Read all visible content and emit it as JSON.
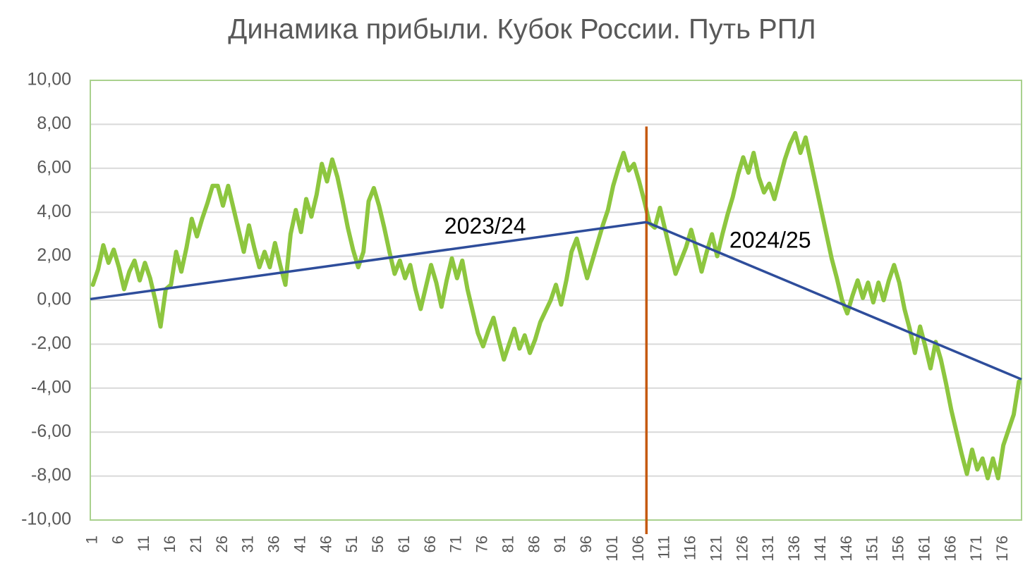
{
  "chart_data": {
    "type": "line",
    "title": "Динамика прибыли. Кубок России. Путь РПЛ",
    "categories": [
      "1",
      null,
      null,
      null,
      null,
      "6",
      null,
      null,
      null,
      null,
      "11",
      null,
      null,
      null,
      null,
      "16",
      null,
      null,
      null,
      null,
      "21",
      null,
      null,
      null,
      null,
      "26",
      null,
      null,
      null,
      null,
      "31",
      null,
      null,
      null,
      null,
      "36",
      null,
      null,
      null,
      null,
      "41",
      null,
      null,
      null,
      null,
      "46",
      null,
      null,
      null,
      null,
      "51",
      null,
      null,
      null,
      null,
      "56",
      null,
      null,
      null,
      null,
      "61",
      null,
      null,
      null,
      null,
      "66",
      null,
      null,
      null,
      null,
      "71",
      null,
      null,
      null,
      null,
      "76",
      null,
      null,
      null,
      null,
      "81",
      null,
      null,
      null,
      null,
      "86",
      null,
      null,
      null,
      null,
      "91",
      null,
      null,
      null,
      null,
      "96",
      null,
      null,
      null,
      null,
      "101",
      null,
      null,
      null,
      null,
      "106",
      null,
      null,
      null,
      null,
      "111",
      null,
      null,
      null,
      null,
      "116",
      null,
      null,
      null,
      null,
      "121",
      null,
      null,
      null,
      null,
      "126",
      null,
      null,
      null,
      null,
      "131",
      null,
      null,
      null,
      null,
      "136",
      null,
      null,
      null,
      null,
      "141",
      null,
      null,
      null,
      null,
      "146",
      null,
      null,
      null,
      null,
      "151",
      null,
      null,
      null,
      null,
      "156",
      null,
      null,
      null,
      null,
      "161",
      null,
      null,
      null,
      null,
      "166",
      null,
      null,
      null,
      null,
      "171",
      null,
      null,
      null,
      null,
      "176",
      null,
      null,
      null
    ],
    "values": [
      0.7,
      1.4,
      2.5,
      1.7,
      2.3,
      1.5,
      0.5,
      1.3,
      1.8,
      0.9,
      1.7,
      1.0,
      0,
      -1.2,
      0.5,
      0.7,
      2.2,
      1.3,
      2.4,
      3.7,
      2.9,
      3.7,
      4.4,
      5.2,
      5.2,
      4.3,
      5.2,
      4.2,
      3.2,
      2.2,
      3.4,
      2.4,
      1.5,
      2.2,
      1.5,
      2.6,
      1.6,
      0.7,
      3.0,
      4.1,
      3.1,
      4.6,
      3.8,
      4.8,
      6.2,
      5.4,
      6.4,
      5.6,
      4.5,
      3.3,
      2.3,
      1.5,
      2.2,
      4.5,
      5.1,
      4.3,
      3.3,
      2.2,
      1.2,
      1.8,
      1.0,
      1.6,
      0.5,
      -0.4,
      0.6,
      1.6,
      0.8,
      -0.3,
      0.9,
      1.9,
      1.0,
      1.8,
      0.5,
      -0.5,
      -1.5,
      -2.1,
      -1.4,
      -0.8,
      -1.8,
      -2.7,
      -2.0,
      -1.3,
      -2.2,
      -1.6,
      -2.4,
      -1.8,
      -1.0,
      -0.5,
      0,
      0.7,
      -0.2,
      0.9,
      2.2,
      2.8,
      1.9,
      1.0,
      1.8,
      2.6,
      3.4,
      4.1,
      5.2,
      6.0,
      6.7,
      5.9,
      6.2,
      5.4,
      4.5,
      3.5,
      3.3,
      4.2,
      3.2,
      2.2,
      1.2,
      1.8,
      2.4,
      3.2,
      2.3,
      1.3,
      2.2,
      3.0,
      2.0,
      3.0,
      3.9,
      4.7,
      5.7,
      6.5,
      5.8,
      6.7,
      5.6,
      4.9,
      5.3,
      4.6,
      5.5,
      6.4,
      7.1,
      7.6,
      6.7,
      7.4,
      6.3,
      5.2,
      4.1,
      3.0,
      1.9,
      1.0,
      0,
      -0.6,
      0.2,
      0.9,
      0.1,
      0.8,
      -0.1,
      0.8,
      0,
      0.9,
      1.6,
      0.8,
      -0.4,
      -1.3,
      -2.4,
      -1.2,
      -2.1,
      -3.1,
      -1.9,
      -2.7,
      -3.8,
      -5.0,
      -6.0,
      -7.0,
      -7.9,
      -6.8,
      -7.7,
      -7.2,
      -8.1,
      -7.2,
      -8.1,
      -6.6,
      -5.9,
      -5.2,
      -3.7
    ],
    "color": "#8dc63f",
    "ylim": [
      -10,
      10
    ],
    "yticks": [
      {
        "value": -10,
        "label": "-10,00"
      },
      {
        "value": -8,
        "label": "-8,00"
      },
      {
        "value": -6,
        "label": "-6,00"
      },
      {
        "value": -4,
        "label": "-4,00"
      },
      {
        "value": -2,
        "label": "-2,00"
      },
      {
        "value": 0,
        "label": "0,00"
      },
      {
        "value": 2,
        "label": "2,00"
      },
      {
        "value": 4,
        "label": "4,00"
      },
      {
        "value": 6,
        "label": "6,00"
      },
      {
        "value": 8,
        "label": "8,00"
      },
      {
        "value": 10,
        "label": "10,00"
      }
    ],
    "grid": true,
    "trendlines": [
      {
        "label": "2023/24",
        "x": [
          0.5,
          107.4
        ],
        "y": [
          0.05,
          3.55
        ],
        "color": "#2e4d9b"
      },
      {
        "label": "2024/25",
        "x": [
          107.4,
          179.5
        ],
        "y": [
          3.55,
          -3.6
        ],
        "color": "#2e4d9b"
      }
    ],
    "vline": {
      "x": 107.4,
      "top": 7.9,
      "color": "#c55a11"
    }
  }
}
